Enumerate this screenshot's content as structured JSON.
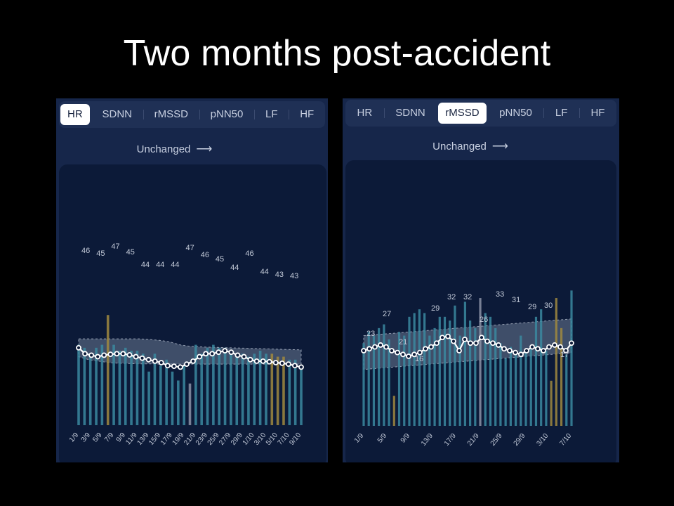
{
  "slide": {
    "title": "Two months post-accident"
  },
  "panels": [
    {
      "tabs": [
        "HR",
        "SDNN",
        "rMSSD",
        "pNN50",
        "LF",
        "HF"
      ],
      "active_tab": "HR",
      "status": "Unchanged",
      "status_arrow": "⟶"
    },
    {
      "tabs": [
        "HR",
        "SDNN",
        "rMSSD",
        "pNN50",
        "LF",
        "HF"
      ],
      "active_tab": "rMSSD",
      "status": "Unchanged",
      "status_arrow": "⟶"
    }
  ],
  "colors": {
    "bar_normal": "#3b8aa0",
    "bar_highlight": "#a08a40",
    "bar_gray": "#8c93a6",
    "line": "#ffffff",
    "band": "#7f8ea7"
  },
  "chart_data": [
    {
      "type": "bar",
      "metric": "HR",
      "x_tick_labels": [
        "1/9",
        "3/9",
        "5/9",
        "7/9",
        "9/9",
        "11/9",
        "13/9",
        "15/9",
        "17/9",
        "19/9",
        "21/9",
        "23/9",
        "25/9",
        "27/9",
        "29/9",
        "1/10",
        "3/10",
        "5/10",
        "7/10",
        "9/10"
      ],
      "point_labels": [
        "46",
        "45",
        "47",
        "45",
        "44",
        "44",
        "44",
        "47",
        "46",
        "45",
        "44",
        "46",
        "44",
        "43",
        "43"
      ],
      "bars": [
        47,
        46,
        44,
        46,
        47,
        57,
        47,
        45,
        46,
        45,
        45,
        44,
        38,
        44,
        40,
        42,
        38,
        35,
        40,
        34,
        47,
        44,
        46,
        47,
        46,
        46,
        45,
        44,
        44,
        43,
        44,
        45,
        44,
        44,
        43,
        43,
        42,
        42,
        40
      ],
      "bar_colors": [
        "n",
        "n",
        "n",
        "n",
        "n",
        "h",
        "n",
        "n",
        "n",
        "n",
        "n",
        "n",
        "n",
        "n",
        "n",
        "n",
        "n",
        "n",
        "n",
        "g",
        "n",
        "n",
        "n",
        "n",
        "n",
        "n",
        "n",
        "n",
        "n",
        "n",
        "n",
        "n",
        "n",
        "h",
        "h",
        "h",
        "n",
        "n",
        "n"
      ],
      "line": [
        46,
        44,
        43.5,
        43,
        43.5,
        43.8,
        44,
        44,
        43.6,
        43,
        42.5,
        42,
        41.5,
        41,
        40,
        39.8,
        39.5,
        40.5,
        41.5,
        43,
        44,
        44,
        44.5,
        45,
        44.5,
        43.5,
        43,
        42,
        41.5,
        41.5,
        41.3,
        41,
        40.8,
        40.5,
        40,
        39.5
      ],
      "band_upper": [
        49,
        49,
        49,
        49,
        49,
        49,
        49,
        48.8,
        48.5,
        48,
        47,
        46.5,
        46.3,
        46.2,
        46.1,
        46,
        45.9,
        45.8,
        45.7,
        45.6,
        45.5,
        45.4,
        45.3
      ],
      "band_lower": [
        43,
        42,
        41.5,
        41,
        40.8,
        40.7,
        40.6,
        40.6,
        40.5,
        40.5,
        40.5,
        40.5,
        40.5,
        40.5,
        40.5,
        40.5,
        40.5,
        40.5,
        40.5,
        40.5,
        40.5,
        40.5,
        40.5
      ]
    },
    {
      "type": "bar",
      "metric": "rMSSD",
      "x_tick_labels": [
        "1/9",
        "5/9",
        "9/9",
        "13/9",
        "17/9",
        "21/9",
        "25/9",
        "29/9",
        "3/10",
        "7/10"
      ],
      "point_labels": [
        "23",
        "27",
        "21",
        "16",
        "29",
        "32",
        "32",
        "26",
        "33",
        "31",
        "29",
        "30",
        "17"
      ],
      "bars": [
        22,
        25,
        24,
        26,
        27,
        23,
        8,
        25,
        24,
        29,
        30,
        31,
        30,
        24,
        26,
        29,
        29,
        28,
        32,
        24,
        33,
        28,
        26,
        34,
        30,
        29,
        26,
        22,
        18,
        21,
        19,
        24,
        20,
        21,
        29,
        31,
        20,
        12,
        34,
        26,
        19,
        36
      ],
      "bar_colors": [
        "n",
        "n",
        "n",
        "n",
        "n",
        "n",
        "h",
        "n",
        "n",
        "n",
        "n",
        "n",
        "n",
        "n",
        "n",
        "n",
        "n",
        "n",
        "n",
        "n",
        "n",
        "n",
        "n",
        "g",
        "n",
        "n",
        "n",
        "n",
        "n",
        "n",
        "n",
        "n",
        "n",
        "n",
        "n",
        "n",
        "n",
        "h",
        "h",
        "h",
        "n",
        "n"
      ],
      "line": [
        20,
        20.5,
        21,
        21.5,
        21,
        20,
        19.5,
        19,
        18.5,
        19,
        19.5,
        20.5,
        21,
        22,
        23.5,
        23.8,
        22.5,
        20,
        23,
        22,
        22,
        23.5,
        22.5,
        22,
        21.5,
        20.5,
        20,
        19.5,
        19,
        20,
        21,
        20.5,
        20,
        21,
        21.5,
        21,
        20,
        22
      ]
    }
  ]
}
